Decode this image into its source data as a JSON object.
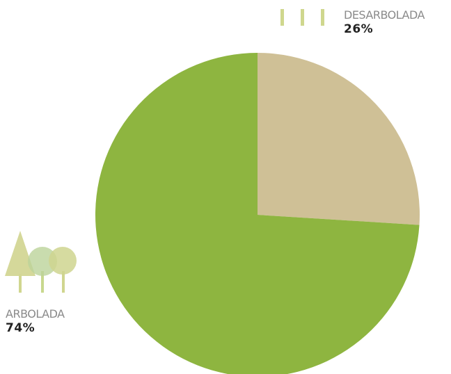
{
  "chart_data": {
    "type": "pie",
    "slices": [
      {
        "label": "DESARBOLADA",
        "value": 26,
        "display": "26%",
        "color": "#cfc096"
      },
      {
        "label": "ARBOLADA",
        "value": 74,
        "display": "74%",
        "color": "#8eb540"
      }
    ],
    "start_angle": "12 o'clock",
    "direction": "clockwise",
    "legend_placement": "labels beside pie with icons (top-right and left)"
  },
  "icons": {
    "desarbolada": "stumps-icon",
    "arbolada": "trees-icon"
  },
  "colors": {
    "icon_green": "#ccd48a",
    "icon_tree": "#d2d691"
  }
}
